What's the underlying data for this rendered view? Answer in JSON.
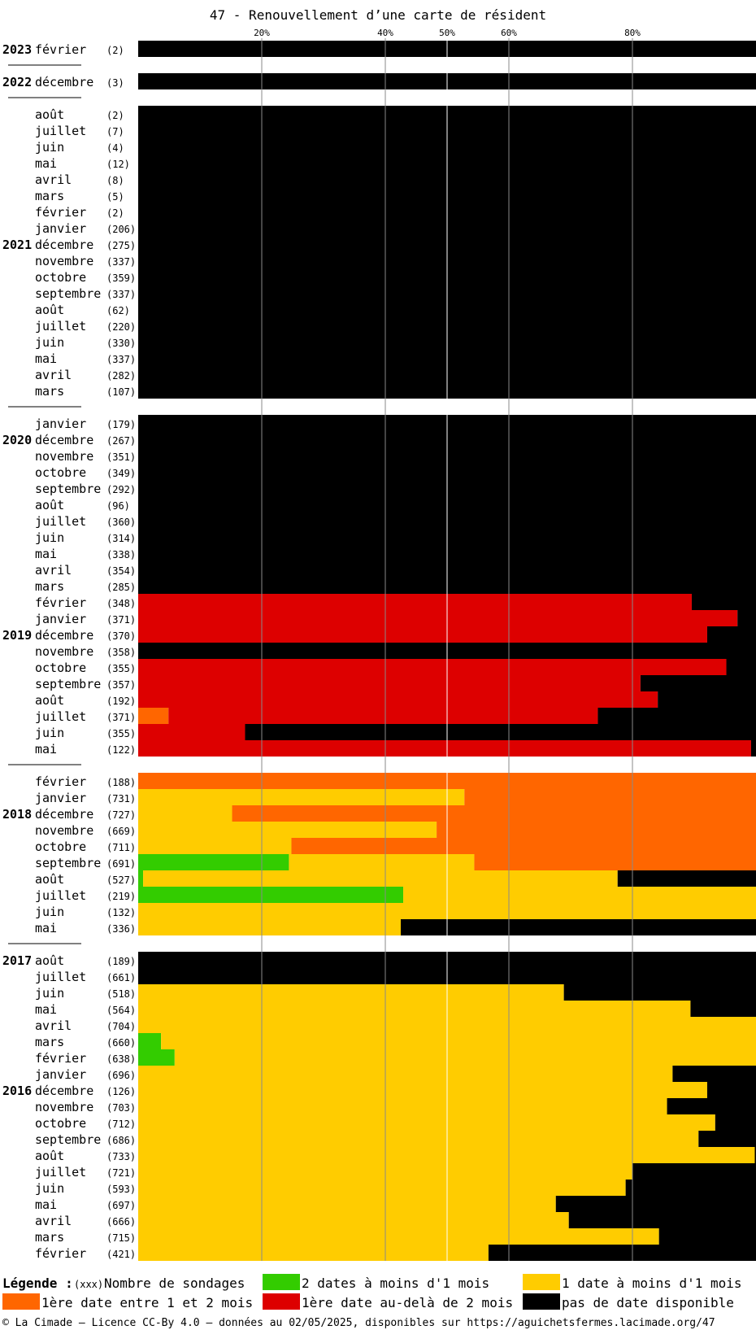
{
  "chart_data": {
    "type": "bar",
    "title": "47 - Renouvellement d’une carte de résident",
    "x_ticks": [
      "20%",
      "40%",
      "50%",
      "60%",
      "80%"
    ],
    "x_tick_values": [
      20,
      40,
      50,
      60,
      80
    ],
    "xlim": [
      0,
      100
    ],
    "categories_meaning": "stacked percentage of surveys per month",
    "series_keys": [
      "two_dates",
      "one_date",
      "first_1_2",
      "first_beyond_2",
      "none"
    ],
    "series_colors": [
      "#33cc00",
      "#ffcc00",
      "#ff6600",
      "#dd0000",
      "#000000"
    ],
    "rows": [
      {
        "year": "2023",
        "month": "février",
        "count": "(2)",
        "values": [
          0,
          0,
          0,
          0,
          100
        ]
      },
      {
        "sep": true
      },
      {
        "year": "2022",
        "month": "décembre",
        "count": "(3)",
        "values": [
          0,
          0,
          0,
          0,
          100
        ]
      },
      {
        "sep": true
      },
      {
        "month": "août",
        "count": "(2)",
        "values": [
          0,
          0,
          0,
          0,
          100
        ]
      },
      {
        "month": "juillet",
        "count": "(7)",
        "values": [
          0,
          0,
          0,
          0,
          100
        ]
      },
      {
        "month": "juin",
        "count": "(4)",
        "values": [
          0,
          0,
          0,
          0,
          100
        ]
      },
      {
        "month": "mai",
        "count": "(12)",
        "values": [
          0,
          0,
          0,
          0,
          100
        ]
      },
      {
        "month": "avril",
        "count": "(8)",
        "values": [
          0,
          0,
          0,
          0,
          100
        ]
      },
      {
        "month": "mars",
        "count": "(5)",
        "values": [
          0,
          0,
          0,
          0,
          100
        ]
      },
      {
        "month": "février",
        "count": "(2)",
        "values": [
          0,
          0,
          0,
          0,
          100
        ]
      },
      {
        "month": "janvier",
        "count": "(206)",
        "values": [
          0,
          0,
          0,
          0,
          100
        ]
      },
      {
        "year": "2021",
        "month": "décembre",
        "count": "(275)",
        "values": [
          0,
          0,
          0,
          0,
          100
        ]
      },
      {
        "month": "novembre",
        "count": "(337)",
        "values": [
          0,
          0,
          0,
          0,
          100
        ]
      },
      {
        "month": "octobre",
        "count": "(359)",
        "values": [
          0,
          0,
          0,
          0,
          100
        ]
      },
      {
        "month": "septembre",
        "count": "(337)",
        "values": [
          0,
          0,
          0,
          0,
          100
        ]
      },
      {
        "month": "août",
        "count": "(62)",
        "values": [
          0,
          0,
          0,
          0,
          100
        ]
      },
      {
        "month": "juillet",
        "count": "(220)",
        "values": [
          0,
          0,
          0,
          0,
          100
        ]
      },
      {
        "month": "juin",
        "count": "(330)",
        "values": [
          0,
          0,
          0,
          0,
          100
        ]
      },
      {
        "month": "mai",
        "count": "(337)",
        "values": [
          0,
          0,
          0,
          0,
          100
        ]
      },
      {
        "month": "avril",
        "count": "(282)",
        "values": [
          0,
          0,
          0,
          0,
          100
        ]
      },
      {
        "month": "mars",
        "count": "(107)",
        "values": [
          0,
          0,
          0,
          0,
          100
        ]
      },
      {
        "sep": true
      },
      {
        "month": "janvier",
        "count": "(179)",
        "values": [
          0,
          0,
          0,
          0,
          100
        ]
      },
      {
        "year": "2020",
        "month": "décembre",
        "count": "(267)",
        "values": [
          0,
          0,
          0,
          0,
          100
        ]
      },
      {
        "month": "novembre",
        "count": "(351)",
        "values": [
          0,
          0,
          0,
          0,
          100
        ]
      },
      {
        "month": "octobre",
        "count": "(349)",
        "values": [
          0,
          0,
          0,
          0,
          100
        ]
      },
      {
        "month": "septembre",
        "count": "(292)",
        "values": [
          0,
          0,
          0,
          0,
          100
        ]
      },
      {
        "month": "août",
        "count": "(96)",
        "values": [
          0,
          0,
          0,
          0,
          100
        ]
      },
      {
        "month": "juillet",
        "count": "(360)",
        "values": [
          0,
          0,
          0,
          0,
          100
        ]
      },
      {
        "month": "juin",
        "count": "(314)",
        "values": [
          0,
          0,
          0,
          0,
          100
        ]
      },
      {
        "month": "mai",
        "count": "(338)",
        "values": [
          0,
          0,
          0,
          0,
          100
        ]
      },
      {
        "month": "avril",
        "count": "(354)",
        "values": [
          0,
          0,
          0,
          0,
          100
        ]
      },
      {
        "month": "mars",
        "count": "(285)",
        "values": [
          0,
          0,
          0,
          0,
          100
        ]
      },
      {
        "month": "février",
        "count": "(348)",
        "values": [
          0,
          0,
          0,
          89.6,
          10.4
        ]
      },
      {
        "month": "janvier",
        "count": "(371)",
        "values": [
          0,
          0,
          0,
          97,
          3
        ]
      },
      {
        "year": "2019",
        "month": "décembre",
        "count": "(370)",
        "values": [
          0,
          0,
          0,
          92.1,
          7.9
        ]
      },
      {
        "month": "novembre",
        "count": "(358)",
        "values": [
          0,
          0,
          0,
          0,
          100
        ]
      },
      {
        "month": "octobre",
        "count": "(355)",
        "values": [
          0,
          0,
          0,
          95.2,
          4.8
        ]
      },
      {
        "month": "septembre",
        "count": "(357)",
        "values": [
          0,
          0,
          0,
          81.3,
          18.7
        ]
      },
      {
        "month": "août",
        "count": "(192)",
        "values": [
          0,
          0,
          0,
          84.1,
          15.9
        ]
      },
      {
        "month": "juillet",
        "count": "(371)",
        "values": [
          0,
          0,
          4.9,
          69.5,
          25.6
        ]
      },
      {
        "month": "juin",
        "count": "(355)",
        "values": [
          0,
          0,
          0,
          17.3,
          82.7
        ]
      },
      {
        "month": "mai",
        "count": "(122)",
        "values": [
          0,
          0,
          0,
          99.2,
          0.8
        ]
      },
      {
        "sep": true
      },
      {
        "month": "février",
        "count": "(188)",
        "values": [
          0,
          0,
          100,
          0,
          0
        ]
      },
      {
        "month": "janvier",
        "count": "(731)",
        "values": [
          0,
          52.8,
          47.2,
          0,
          0
        ]
      },
      {
        "year": "2018",
        "month": "décembre",
        "count": "(727)",
        "values": [
          0,
          15.2,
          84.8,
          0,
          0
        ]
      },
      {
        "month": "novembre",
        "count": "(669)",
        "values": [
          0,
          48.3,
          51.7,
          0,
          0
        ]
      },
      {
        "month": "octobre",
        "count": "(711)",
        "values": [
          0,
          24.8,
          75.2,
          0,
          0
        ]
      },
      {
        "month": "septembre",
        "count": "(691)",
        "values": [
          24.4,
          30,
          45.6,
          0,
          0
        ]
      },
      {
        "month": "août",
        "count": "(527)",
        "values": [
          0.8,
          76.8,
          0,
          0,
          22.4
        ]
      },
      {
        "month": "juillet",
        "count": "(219)",
        "values": [
          42.9,
          57.1,
          0,
          0,
          0
        ]
      },
      {
        "month": "juin",
        "count": "(132)",
        "values": [
          0,
          100,
          0,
          0,
          0
        ]
      },
      {
        "month": "mai",
        "count": "(336)",
        "values": [
          0,
          42.5,
          0,
          0,
          57.5
        ]
      },
      {
        "sep": true
      },
      {
        "year": "2017",
        "month": "août",
        "count": "(189)",
        "values": [
          0,
          0,
          0,
          0,
          100
        ]
      },
      {
        "month": "juillet",
        "count": "(661)",
        "values": [
          0,
          0,
          0,
          0,
          100
        ]
      },
      {
        "month": "juin",
        "count": "(518)",
        "values": [
          0,
          68.9,
          0,
          0,
          31.1
        ]
      },
      {
        "month": "mai",
        "count": "(564)",
        "values": [
          0,
          89.4,
          0,
          0,
          10.6
        ]
      },
      {
        "month": "avril",
        "count": "(704)",
        "values": [
          0,
          100,
          0,
          0,
          0
        ]
      },
      {
        "month": "mars",
        "count": "(660)",
        "values": [
          3.7,
          96.3,
          0,
          0,
          0
        ]
      },
      {
        "month": "février",
        "count": "(638)",
        "values": [
          5.9,
          94.1,
          0,
          0,
          0
        ]
      },
      {
        "month": "janvier",
        "count": "(696)",
        "values": [
          0,
          86.5,
          0,
          0,
          13.5
        ]
      },
      {
        "year": "2016",
        "month": "décembre",
        "count": "(126)",
        "values": [
          0,
          92.1,
          0,
          0,
          7.9
        ]
      },
      {
        "month": "novembre",
        "count": "(703)",
        "values": [
          0,
          85.6,
          0,
          0,
          14.4
        ]
      },
      {
        "month": "octobre",
        "count": "(712)",
        "values": [
          0,
          93.4,
          0,
          0,
          6.6
        ]
      },
      {
        "month": "septembre",
        "count": "(686)",
        "values": [
          0,
          90.7,
          0,
          0,
          9.3
        ]
      },
      {
        "month": "août",
        "count": "(733)",
        "values": [
          0,
          99.8,
          0,
          0,
          0.2
        ]
      },
      {
        "month": "juillet",
        "count": "(721)",
        "values": [
          0,
          80,
          0,
          0,
          20
        ]
      },
      {
        "month": "juin",
        "count": "(593)",
        "values": [
          0,
          78.9,
          0,
          0,
          21.1
        ]
      },
      {
        "month": "mai",
        "count": "(697)",
        "values": [
          0,
          67.6,
          0,
          0,
          32.4
        ]
      },
      {
        "month": "avril",
        "count": "(666)",
        "values": [
          0,
          69.7,
          0,
          0,
          30.3
        ]
      },
      {
        "month": "mars",
        "count": "(715)",
        "values": [
          0,
          84.3,
          0,
          0,
          15.7
        ]
      },
      {
        "month": "février",
        "count": "(421)",
        "values": [
          0,
          56.7,
          0,
          0,
          43.3
        ]
      }
    ]
  },
  "legend": {
    "title": "Légende :",
    "count_sample": "(xxx)",
    "count_label": "Nombre de sondages",
    "items": [
      {
        "label": "2 dates à moins d'1 mois",
        "color": "#33cc00"
      },
      {
        "label": "1 date à moins d'1 mois",
        "color": "#ffcc00"
      },
      {
        "label": "1ère date entre 1 et 2 mois",
        "color": "#ff6600"
      },
      {
        "label": "1ère date au-delà de 2 mois",
        "color": "#dd0000"
      },
      {
        "label": "pas de date disponible",
        "color": "#000000"
      }
    ]
  },
  "footer": "© La Cimade — Licence CC-By 4.0 — données au 02/05/2025, disponibles sur https://aguichetsfermes.lacimade.org/47"
}
